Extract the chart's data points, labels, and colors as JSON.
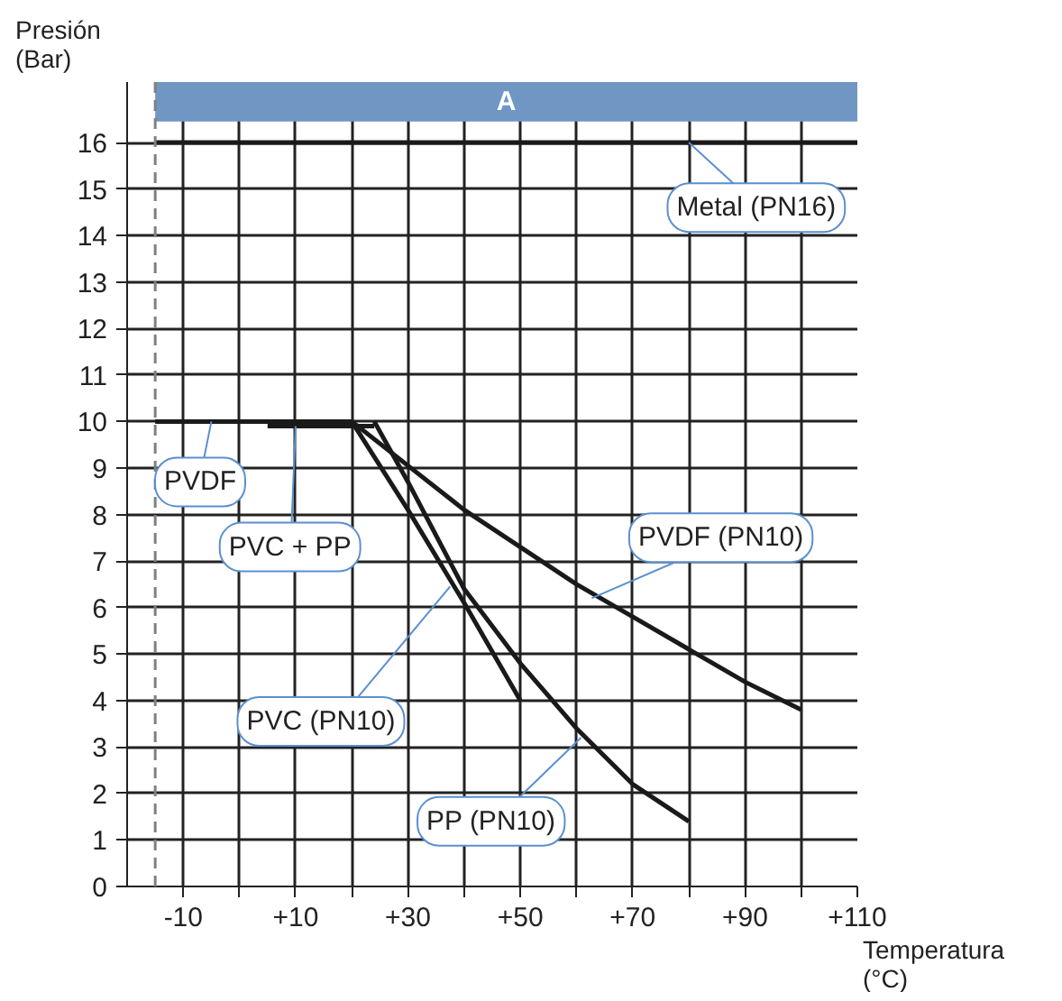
{
  "chart_data": {
    "type": "line",
    "xlabel": "Temperatura (°C)",
    "ylabel": "Presión (Bar)",
    "xlim": [
      -20,
      110
    ],
    "ylim": [
      0,
      17.3
    ],
    "xticks": [
      {
        "value": -10,
        "label": "-10"
      },
      {
        "value": 0,
        "label": null
      },
      {
        "value": 10,
        "label": "+10"
      },
      {
        "value": 20,
        "label": null
      },
      {
        "value": 30,
        "label": "+30"
      },
      {
        "value": 40,
        "label": null
      },
      {
        "value": 50,
        "label": "+50"
      },
      {
        "value": 60,
        "label": null
      },
      {
        "value": 70,
        "label": "+70"
      },
      {
        "value": 80,
        "label": null
      },
      {
        "value": 90,
        "label": "+90"
      },
      {
        "value": 100,
        "label": null
      },
      {
        "value": 110,
        "label": "+110"
      }
    ],
    "yticks": [
      0,
      1,
      2,
      3,
      4,
      5,
      6,
      7,
      8,
      9,
      10,
      11,
      12,
      13,
      14,
      15,
      16
    ],
    "grid": true,
    "marker": "none",
    "line_style": "solid",
    "series": [
      {
        "color": "#1a1a1a",
        "x": [
          -15,
          110
        ],
        "values": [
          16,
          16
        ]
      },
      {
        "color": "#1a1a1a",
        "x": [
          -15,
          20
        ],
        "values": [
          10,
          10
        ]
      },
      {
        "color": "#1a1a1a",
        "x": [
          5,
          24
        ],
        "values": [
          9.9,
          9.9
        ]
      },
      {
        "color": "#1a1a1a",
        "x": [
          20,
          30,
          40,
          50
        ],
        "values": [
          10,
          8.1,
          6.1,
          4.0
        ]
      },
      {
        "color": "#1a1a1a",
        "x": [
          24,
          30,
          40,
          50,
          60,
          70,
          80
        ],
        "values": [
          10,
          8.7,
          6.4,
          4.8,
          3.4,
          2.2,
          1.4
        ]
      },
      {
        "color": "#1a1a1a",
        "x": [
          20,
          30,
          40,
          50,
          60,
          70,
          80,
          90,
          100
        ],
        "values": [
          10,
          9.05,
          8.1,
          7.3,
          6.5,
          5.8,
          5.1,
          4.4,
          3.8
        ]
      }
    ],
    "ref_lines": [
      {
        "axis": "x",
        "value": -15,
        "color": "#808080",
        "line_style": "dashed"
      }
    ],
    "bands": [
      {
        "axis": "x",
        "from": -15,
        "to": 110,
        "label": "A",
        "color": "#7096c4"
      }
    ],
    "annotations": [
      {
        "text": "Metal (PN16)",
        "x": 80,
        "y": 16
      },
      {
        "text": "PVDF",
        "x": -5,
        "y": 10
      },
      {
        "text": "PVC + PP",
        "x": 10,
        "y": 9.9
      },
      {
        "text": "PVC (PN10)",
        "x": 37.5,
        "y": 6.45
      },
      {
        "text": "PVDF (PN10)",
        "x": 62.7,
        "y": 6.2
      },
      {
        "text": "PP (PN10)",
        "x": 60.8,
        "y": 3.2
      }
    ]
  }
}
